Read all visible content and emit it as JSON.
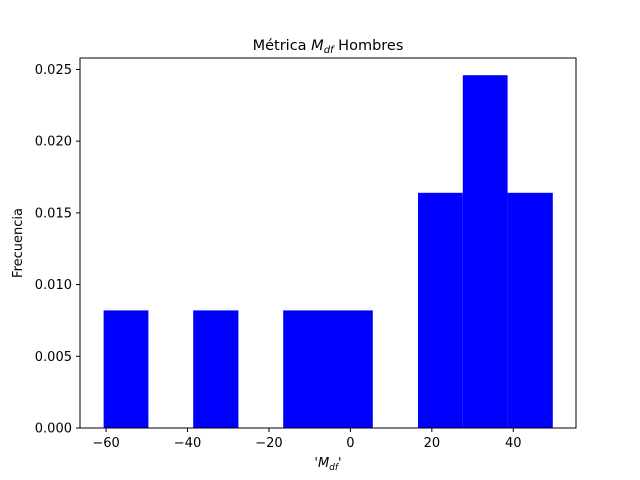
{
  "chart_data": {
    "type": "bar",
    "title_prefix": "Métrica ",
    "title_math_main": "M",
    "title_math_sub": "df",
    "title_suffix": " Hombres",
    "xlabel_prefix": "'",
    "xlabel_math_main": "M",
    "xlabel_math_sub": "df",
    "xlabel_suffix": "'",
    "ylabel": "Frecuencia",
    "xlim": [
      -66.4,
      55.4
    ],
    "ylim": [
      0,
      0.0258
    ],
    "xticks": [
      -60,
      -40,
      -20,
      0,
      20,
      40
    ],
    "xtick_labels": [
      "−60",
      "−40",
      "−20",
      "0",
      "20",
      "40"
    ],
    "yticks": [
      0.0,
      0.005,
      0.01,
      0.015,
      0.02,
      0.025
    ],
    "ytick_labels": [
      "0.000",
      "0.005",
      "0.010",
      "0.015",
      "0.020",
      "0.025"
    ],
    "bar_color": "#0000ff",
    "bins": [
      {
        "x0": -60.6,
        "x1": -49.6,
        "value": 0.0082
      },
      {
        "x0": -49.6,
        "x1": -38.6,
        "value": 0.0
      },
      {
        "x0": -38.6,
        "x1": -27.5,
        "value": 0.0082
      },
      {
        "x0": -27.5,
        "x1": -16.5,
        "value": 0.0
      },
      {
        "x0": -16.5,
        "x1": -5.5,
        "value": 0.0082
      },
      {
        "x0": -5.5,
        "x1": 5.5,
        "value": 0.0082
      },
      {
        "x0": 5.5,
        "x1": 16.6,
        "value": 0.0
      },
      {
        "x0": 16.6,
        "x1": 27.6,
        "value": 0.0164
      },
      {
        "x0": 27.6,
        "x1": 38.6,
        "value": 0.0246
      },
      {
        "x0": 38.6,
        "x1": 49.7,
        "value": 0.0164
      }
    ],
    "grid": false,
    "legend": "none"
  }
}
